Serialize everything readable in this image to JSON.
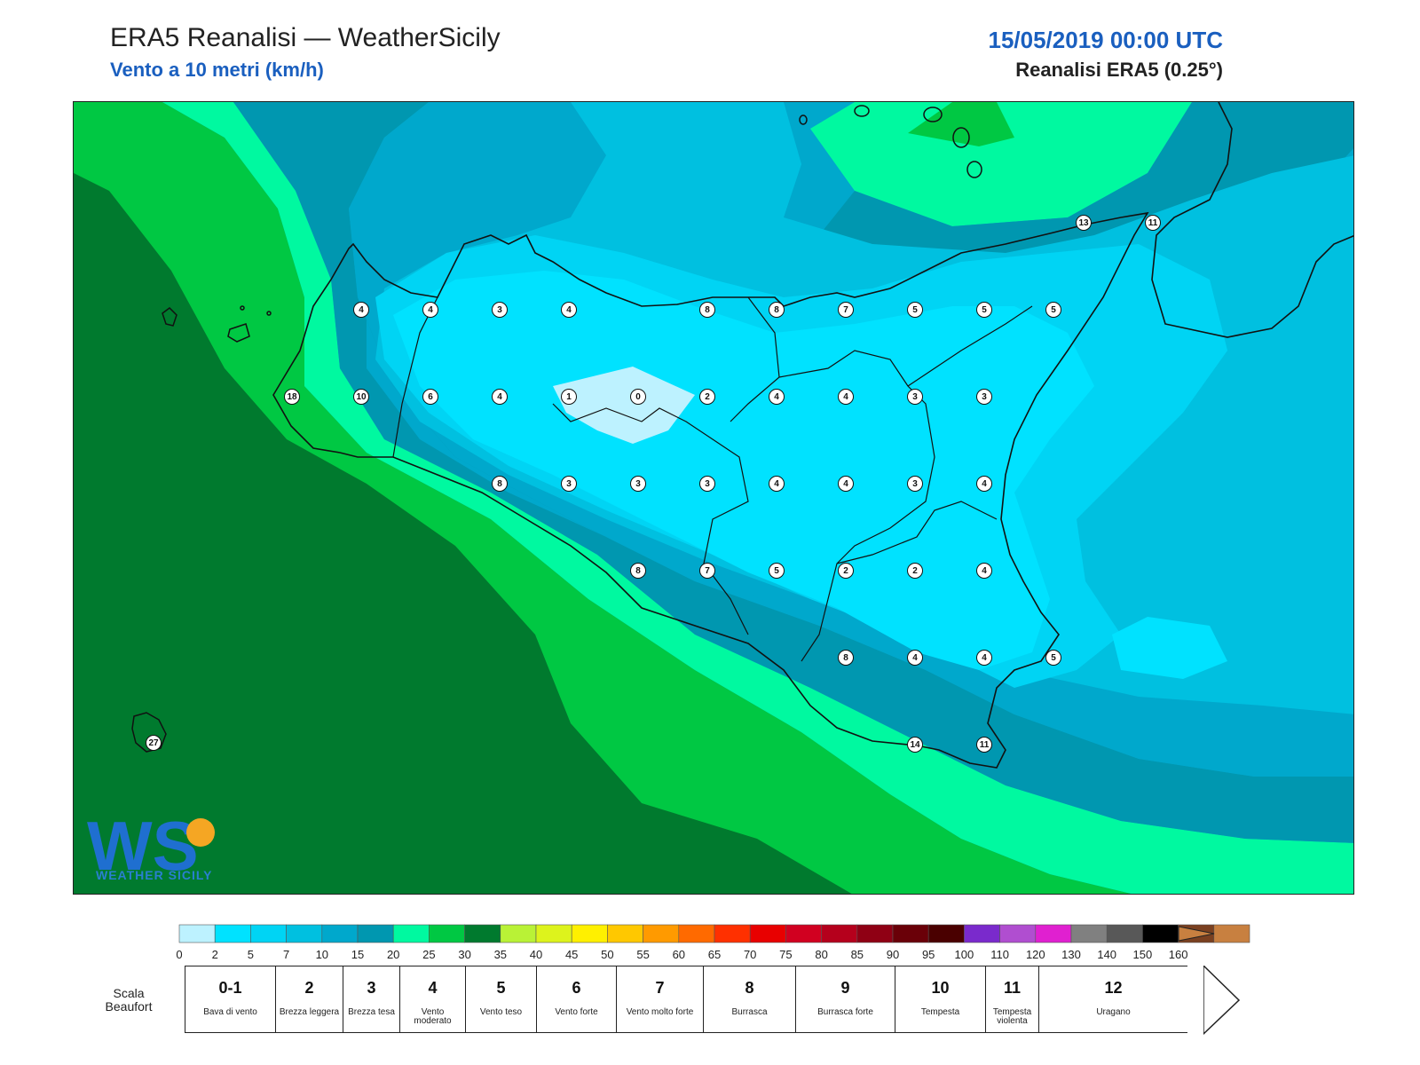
{
  "header": {
    "title": "ERA5 Reanalisi — WeatherSicily",
    "subtitle": "Vento a 10 metri (km/h)",
    "datetime": "15/05/2019 00:00 UTC",
    "dataset": "Reanalisi ERA5 (0.25°)"
  },
  "logo": {
    "text": "WEATHER SICILY",
    "mark": "WS"
  },
  "colors": {
    "sea_deep": "#007A2E",
    "green_mid": "#00C843",
    "aqua": "#00F9A0",
    "teal_dark": "#0097B0",
    "teal": "#00A8CC",
    "cyan_mid": "#00C6E8",
    "cyan_bright": "#00E2FF",
    "cyan_light": "#BDF2FF",
    "coast": "#111111"
  },
  "stations": [
    {
      "v": "13"
    },
    {
      "v": "11"
    },
    {
      "v": "4"
    },
    {
      "v": "4"
    },
    {
      "v": "3"
    },
    {
      "v": "4"
    },
    {
      "v": "8"
    },
    {
      "v": "8"
    },
    {
      "v": "7"
    },
    {
      "v": "5"
    },
    {
      "v": "5"
    },
    {
      "v": "5"
    },
    {
      "v": "18"
    },
    {
      "v": "10"
    },
    {
      "v": "6"
    },
    {
      "v": "4"
    },
    {
      "v": "1"
    },
    {
      "v": "0"
    },
    {
      "v": "2"
    },
    {
      "v": "4"
    },
    {
      "v": "4"
    },
    {
      "v": "3"
    },
    {
      "v": "3"
    },
    {
      "v": "8"
    },
    {
      "v": "3"
    },
    {
      "v": "3"
    },
    {
      "v": "3"
    },
    {
      "v": "4"
    },
    {
      "v": "4"
    },
    {
      "v": "3"
    },
    {
      "v": "4"
    },
    {
      "v": "8"
    },
    {
      "v": "7"
    },
    {
      "v": "5"
    },
    {
      "v": "2"
    },
    {
      "v": "2"
    },
    {
      "v": "4"
    },
    {
      "v": "8"
    },
    {
      "v": "4"
    },
    {
      "v": "4"
    },
    {
      "v": "5"
    },
    {
      "v": "14"
    },
    {
      "v": "11"
    },
    {
      "v": "27"
    }
  ],
  "colorbar": {
    "colors": [
      "#BDF2FF",
      "#00E2FF",
      "#00D4F4",
      "#00C0E0",
      "#00A8CC",
      "#0097B0",
      "#00F9A0",
      "#00C843",
      "#007A2E",
      "#B9F236",
      "#DDF31C",
      "#FFF000",
      "#FFC800",
      "#FF9A00",
      "#FF6A00",
      "#FF3000",
      "#E80000",
      "#D10020",
      "#B5001C",
      "#8F0014",
      "#6A0008",
      "#4A0000",
      "#7A2ACC",
      "#B04ED0",
      "#E020D0",
      "#808080",
      "#585858",
      "#000000",
      "#7A4020",
      "#C88040"
    ],
    "ticks": [
      "0",
      "2",
      "5",
      "7",
      "10",
      "15",
      "20",
      "25",
      "30",
      "35",
      "40",
      "45",
      "50",
      "55",
      "60",
      "65",
      "70",
      "75",
      "80",
      "85",
      "90",
      "95",
      "100",
      "110",
      "120",
      "130",
      "140",
      "150",
      "160"
    ]
  },
  "beaufort": {
    "label": "Scala Beaufort",
    "cells": [
      {
        "num": "0-1",
        "name": "Bava di vento"
      },
      {
        "num": "2",
        "name": "Brezza leggera"
      },
      {
        "num": "3",
        "name": "Brezza tesa"
      },
      {
        "num": "4",
        "name": "Vento moderato"
      },
      {
        "num": "5",
        "name": "Vento teso"
      },
      {
        "num": "6",
        "name": "Vento forte"
      },
      {
        "num": "7",
        "name": "Vento molto forte"
      },
      {
        "num": "8",
        "name": "Burrasca"
      },
      {
        "num": "9",
        "name": "Burrasca forte"
      },
      {
        "num": "10",
        "name": "Tempesta"
      },
      {
        "num": "11",
        "name": "Tempesta violenta"
      },
      {
        "num": "12",
        "name": "Uragano"
      }
    ]
  }
}
